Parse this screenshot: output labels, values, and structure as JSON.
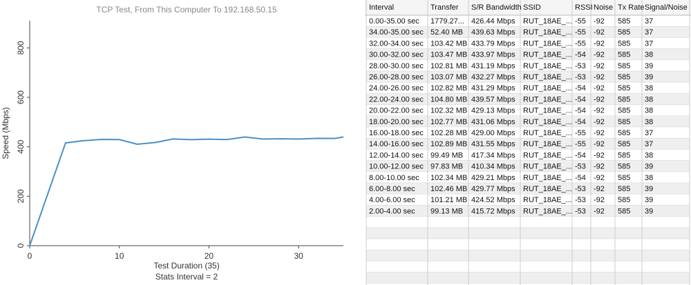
{
  "chart_data": {
    "type": "line",
    "title": "TCP Test,  From This Computer To 192.168.50.15",
    "xlabel": "Test Duration (35)",
    "annotation": "Stats Interval = 2",
    "ylabel": "Speed (Mbps)",
    "x": [
      0,
      4,
      6,
      8,
      10,
      12,
      14,
      16,
      18,
      20,
      22,
      24,
      26,
      28,
      30,
      32,
      34,
      35
    ],
    "values": [
      0,
      415.72,
      424.52,
      429.77,
      429.21,
      410.34,
      417.34,
      431.55,
      429.0,
      431.06,
      429.13,
      439.57,
      431.29,
      432.27,
      431.19,
      433.97,
      433.79,
      439.63
    ],
    "color": "#4a90c8",
    "xlim": [
      0,
      35
    ],
    "xticks": [
      0,
      10,
      20,
      30
    ],
    "ylim": [
      0,
      910
    ],
    "yticks": [
      0,
      200,
      400,
      600,
      800
    ]
  },
  "table": {
    "columns": [
      "Interval",
      "Transfer",
      "S/R Bandwidth",
      "SSID",
      "RSSI",
      "Noise",
      "Tx Rate",
      "Signal/Noise"
    ],
    "rows": [
      [
        "0.00-35.00 sec",
        "1779.27...",
        "426.44 Mbps",
        "RUT_18AE_...",
        "-55",
        "-92",
        "585",
        "37"
      ],
      [
        "34.00-35.00 sec",
        "52.40 MB",
        "439.63 Mbps",
        "RUT_18AE_...",
        "-55",
        "-92",
        "585",
        "37"
      ],
      [
        "32.00-34.00 sec",
        "103.42 MB",
        "433.79 Mbps",
        "RUT_18AE_...",
        "-55",
        "-92",
        "585",
        "37"
      ],
      [
        "30.00-32.00 sec",
        "103.47 MB",
        "433.97 Mbps",
        "RUT_18AE_...",
        "-54",
        "-92",
        "585",
        "38"
      ],
      [
        "28.00-30.00 sec",
        "102.81 MB",
        "431.19 Mbps",
        "RUT_18AE_...",
        "-53",
        "-92",
        "585",
        "39"
      ],
      [
        "26.00-28.00 sec",
        "103.07 MB",
        "432.27 Mbps",
        "RUT_18AE_...",
        "-53",
        "-92",
        "585",
        "39"
      ],
      [
        "24.00-26.00 sec",
        "102.82 MB",
        "431.29 Mbps",
        "RUT_18AE_...",
        "-54",
        "-92",
        "585",
        "38"
      ],
      [
        "22.00-24.00 sec",
        "104.80 MB",
        "439.57 Mbps",
        "RUT_18AE_...",
        "-54",
        "-92",
        "585",
        "38"
      ],
      [
        "20.00-22.00 sec",
        "102.32 MB",
        "429.13 Mbps",
        "RUT_18AE_...",
        "-54",
        "-92",
        "585",
        "38"
      ],
      [
        "18.00-20.00 sec",
        "102.77 MB",
        "431.06 Mbps",
        "RUT_18AE_...",
        "-54",
        "-92",
        "585",
        "38"
      ],
      [
        "16.00-18.00 sec",
        "102.28 MB",
        "429.00 Mbps",
        "RUT_18AE_...",
        "-55",
        "-92",
        "585",
        "37"
      ],
      [
        "14.00-16.00 sec",
        "102.89 MB",
        "431.55 Mbps",
        "RUT_18AE_...",
        "-55",
        "-92",
        "585",
        "37"
      ],
      [
        "12.00-14.00 sec",
        "99.49 MB",
        "417.34 Mbps",
        "RUT_18AE_...",
        "-54",
        "-92",
        "585",
        "38"
      ],
      [
        "10.00-12.00 sec",
        "97.83 MB",
        "410.34 Mbps",
        "RUT_18AE_...",
        "-53",
        "-92",
        "585",
        "39"
      ],
      [
        "8.00-10.00 sec",
        "102.34 MB",
        "429.21 Mbps",
        "RUT_18AE_...",
        "-54",
        "-92",
        "585",
        "38"
      ],
      [
        "6.00-8.00 sec",
        "102.46 MB",
        "429.77 Mbps",
        "RUT_18AE_...",
        "-53",
        "-92",
        "585",
        "39"
      ],
      [
        "4.00-6.00 sec",
        "101.21 MB",
        "424.52 Mbps",
        "RUT_18AE_...",
        "-53",
        "-92",
        "585",
        "39"
      ],
      [
        "2.00-4.00 sec",
        "99.13 MB",
        "415.72 Mbps",
        "RUT_18AE_...",
        "-53",
        "-92",
        "585",
        "39"
      ]
    ]
  }
}
